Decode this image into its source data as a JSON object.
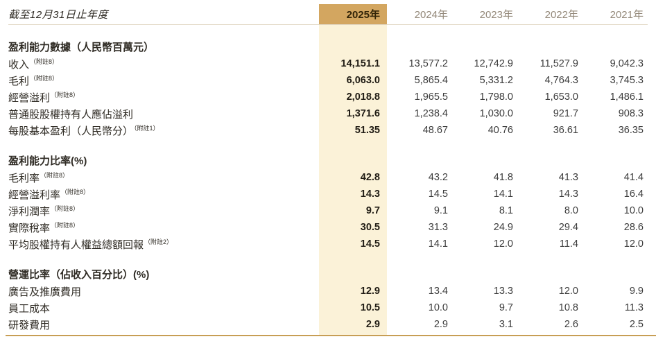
{
  "colors": {
    "header_highlight_bg": "#d3a660",
    "column_highlight_bg": "#fbf2d8",
    "current_year_text": "#332508",
    "past_year_text": "#94897a",
    "label_text": "#2f2b24",
    "number_text": "#3c3c3c",
    "current_number_text": "#201c14",
    "section_title_text": "#2c2820",
    "period_label_text": "#7d7363",
    "bottom_rule": "#c79e55",
    "header_rule": "#e2d9c6"
  },
  "table": {
    "header": {
      "period_label": "截至12月31日止年度",
      "years": [
        "2025年",
        "2024年",
        "2023年",
        "2022年",
        "2021年"
      ]
    },
    "sections": [
      {
        "title": "盈利能力數據（人民幣百萬元）",
        "rows": [
          {
            "label": "收入",
            "note": "（附註8）",
            "values": [
              "14,151.1",
              "13,577.2",
              "12,742.9",
              "11,527.9",
              "9,042.3"
            ]
          },
          {
            "label": "毛利",
            "note": "（附註8）",
            "values": [
              "6,063.0",
              "5,865.4",
              "5,331.2",
              "4,764.3",
              "3,745.3"
            ]
          },
          {
            "label": "經營溢利",
            "note": "（附註8）",
            "values": [
              "2,018.8",
              "1,965.5",
              "1,798.0",
              "1,653.0",
              "1,486.1"
            ]
          },
          {
            "label": "普通股股權持有人應佔溢利",
            "note": "",
            "values": [
              "1,371.6",
              "1,238.4",
              "1,030.0",
              "921.7",
              "908.3"
            ]
          },
          {
            "label": "每股基本盈利（人民幣分）",
            "note": "（附註1）",
            "values": [
              "51.35",
              "48.67",
              "40.76",
              "36.61",
              "36.35"
            ]
          }
        ]
      },
      {
        "title": "盈利能力比率(%)",
        "rows": [
          {
            "label": "毛利率",
            "note": "（附註8）",
            "values": [
              "42.8",
              "43.2",
              "41.8",
              "41.3",
              "41.4"
            ]
          },
          {
            "label": "經營溢利率",
            "note": "（附註8）",
            "values": [
              "14.3",
              "14.5",
              "14.1",
              "14.3",
              "16.4"
            ]
          },
          {
            "label": "淨利潤率",
            "note": "（附註8）",
            "values": [
              "9.7",
              "9.1",
              "8.1",
              "8.0",
              "10.0"
            ]
          },
          {
            "label": "實際稅率",
            "note": "（附註8）",
            "values": [
              "30.5",
              "31.3",
              "24.9",
              "29.4",
              "28.6"
            ]
          },
          {
            "label": "平均股權持有人權益總額回報",
            "note": "（附註2）",
            "values": [
              "14.5",
              "14.1",
              "12.0",
              "11.4",
              "12.0"
            ]
          }
        ]
      },
      {
        "title": "營運比率（佔收入百分比）(%)",
        "rows": [
          {
            "label": "廣告及推廣費用",
            "note": "",
            "values": [
              "12.9",
              "13.4",
              "13.3",
              "12.0",
              "9.9"
            ]
          },
          {
            "label": "員工成本",
            "note": "",
            "values": [
              "10.5",
              "10.0",
              "9.7",
              "10.8",
              "11.3"
            ]
          },
          {
            "label": "研發費用",
            "note": "",
            "values": [
              "2.9",
              "2.9",
              "3.1",
              "2.6",
              "2.5"
            ]
          }
        ]
      }
    ]
  }
}
